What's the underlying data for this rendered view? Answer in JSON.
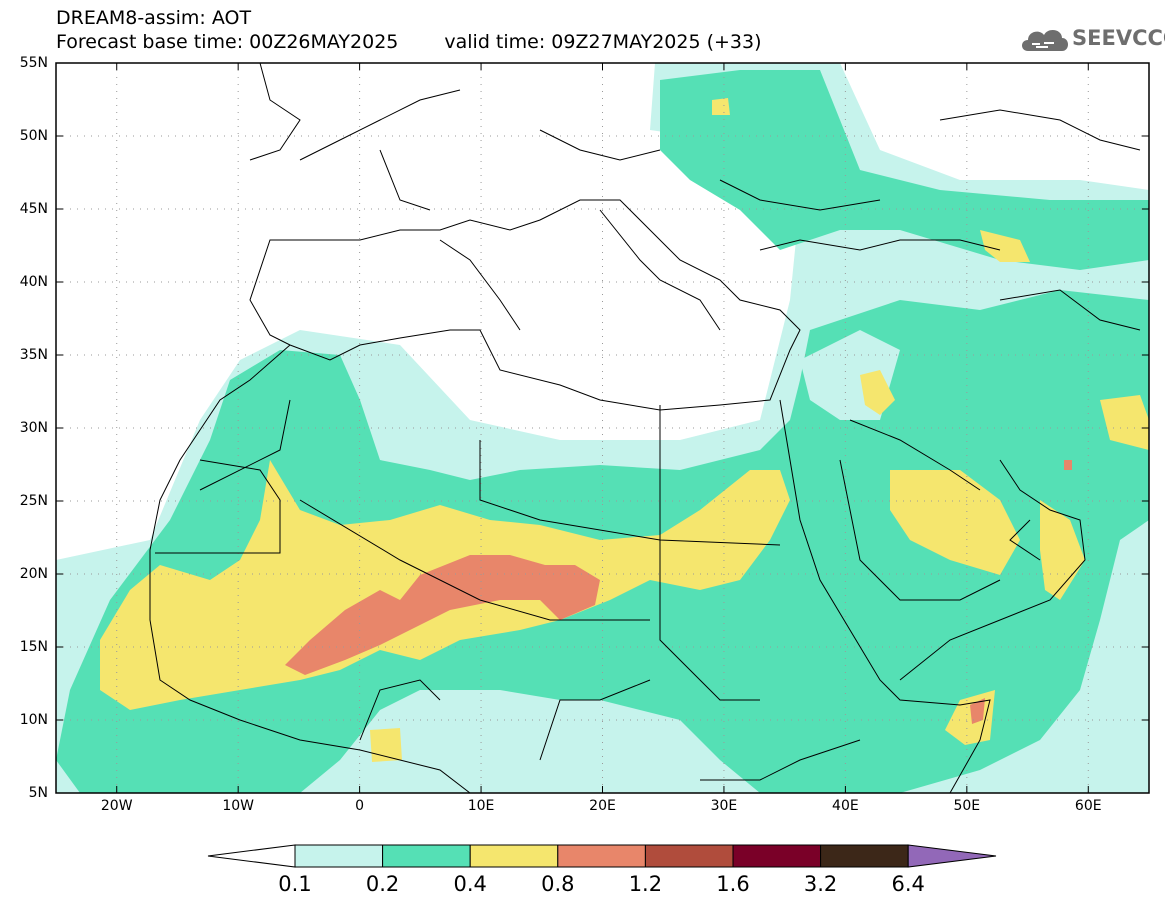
{
  "header": {
    "title_line1": "DREAM8-assim: AOT",
    "base_time": "Forecast base time: 00Z26MAY2025",
    "valid_time": "valid time: 09Z27MAY2025 (+33)"
  },
  "logo": {
    "text": "SEEVCCC",
    "icon": "cloud-logo-icon"
  },
  "map": {
    "lon_range": [
      -25,
      65
    ],
    "lat_range": [
      5,
      55
    ],
    "lat_labels": [
      "55N",
      "50N",
      "45N",
      "40N",
      "35N",
      "30N",
      "25N",
      "20N",
      "15N",
      "10N",
      "5N"
    ],
    "lat_values": [
      55,
      50,
      45,
      40,
      35,
      30,
      25,
      20,
      15,
      10,
      5
    ],
    "lon_labels": [
      "20W",
      "10W",
      "0",
      "10E",
      "20E",
      "30E",
      "40E",
      "50E",
      "60E"
    ],
    "lon_values": [
      -20,
      -10,
      0,
      10,
      20,
      30,
      40,
      50,
      60
    ],
    "grid": true
  },
  "colorbar": {
    "labels": [
      "0.1",
      "0.2",
      "0.4",
      "0.8",
      "1.2",
      "1.6",
      "3.2",
      "6.4"
    ],
    "colors": [
      "#c6f3ec",
      "#55e0b5",
      "#f5e66e",
      "#e8866a",
      "#b04c3c",
      "#7a0028",
      "#3c2718",
      "#9268b8"
    ]
  }
}
